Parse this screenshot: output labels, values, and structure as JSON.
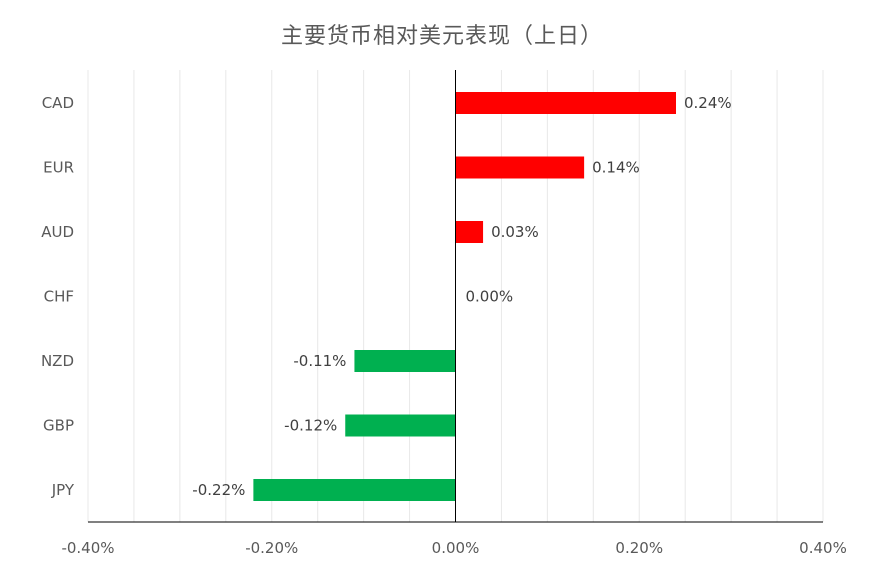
{
  "chart_data": {
    "type": "bar",
    "orientation": "horizontal",
    "title": "主要货币相对美元表现（上日）",
    "categories": [
      "CAD",
      "EUR",
      "AUD",
      "CHF",
      "NZD",
      "GBP",
      "JPY"
    ],
    "values": [
      0.24,
      0.14,
      0.03,
      0.0,
      -0.11,
      -0.12,
      -0.22
    ],
    "value_labels": [
      "0.24%",
      "0.14%",
      "0.03%",
      "0.00%",
      "-0.11%",
      "-0.12%",
      "-0.22%"
    ],
    "xlim": [
      -0.4,
      0.4
    ],
    "x_ticks": [
      -0.4,
      -0.2,
      0.0,
      0.2,
      0.4
    ],
    "x_tick_labels": [
      "-0.40%",
      "-0.20%",
      "0.00%",
      "0.20%",
      "0.40%"
    ],
    "grid": true,
    "colors": {
      "positive": "#ff0000",
      "negative": "#00b050",
      "grid": "#e8e8e8",
      "axis": "#000000"
    }
  }
}
